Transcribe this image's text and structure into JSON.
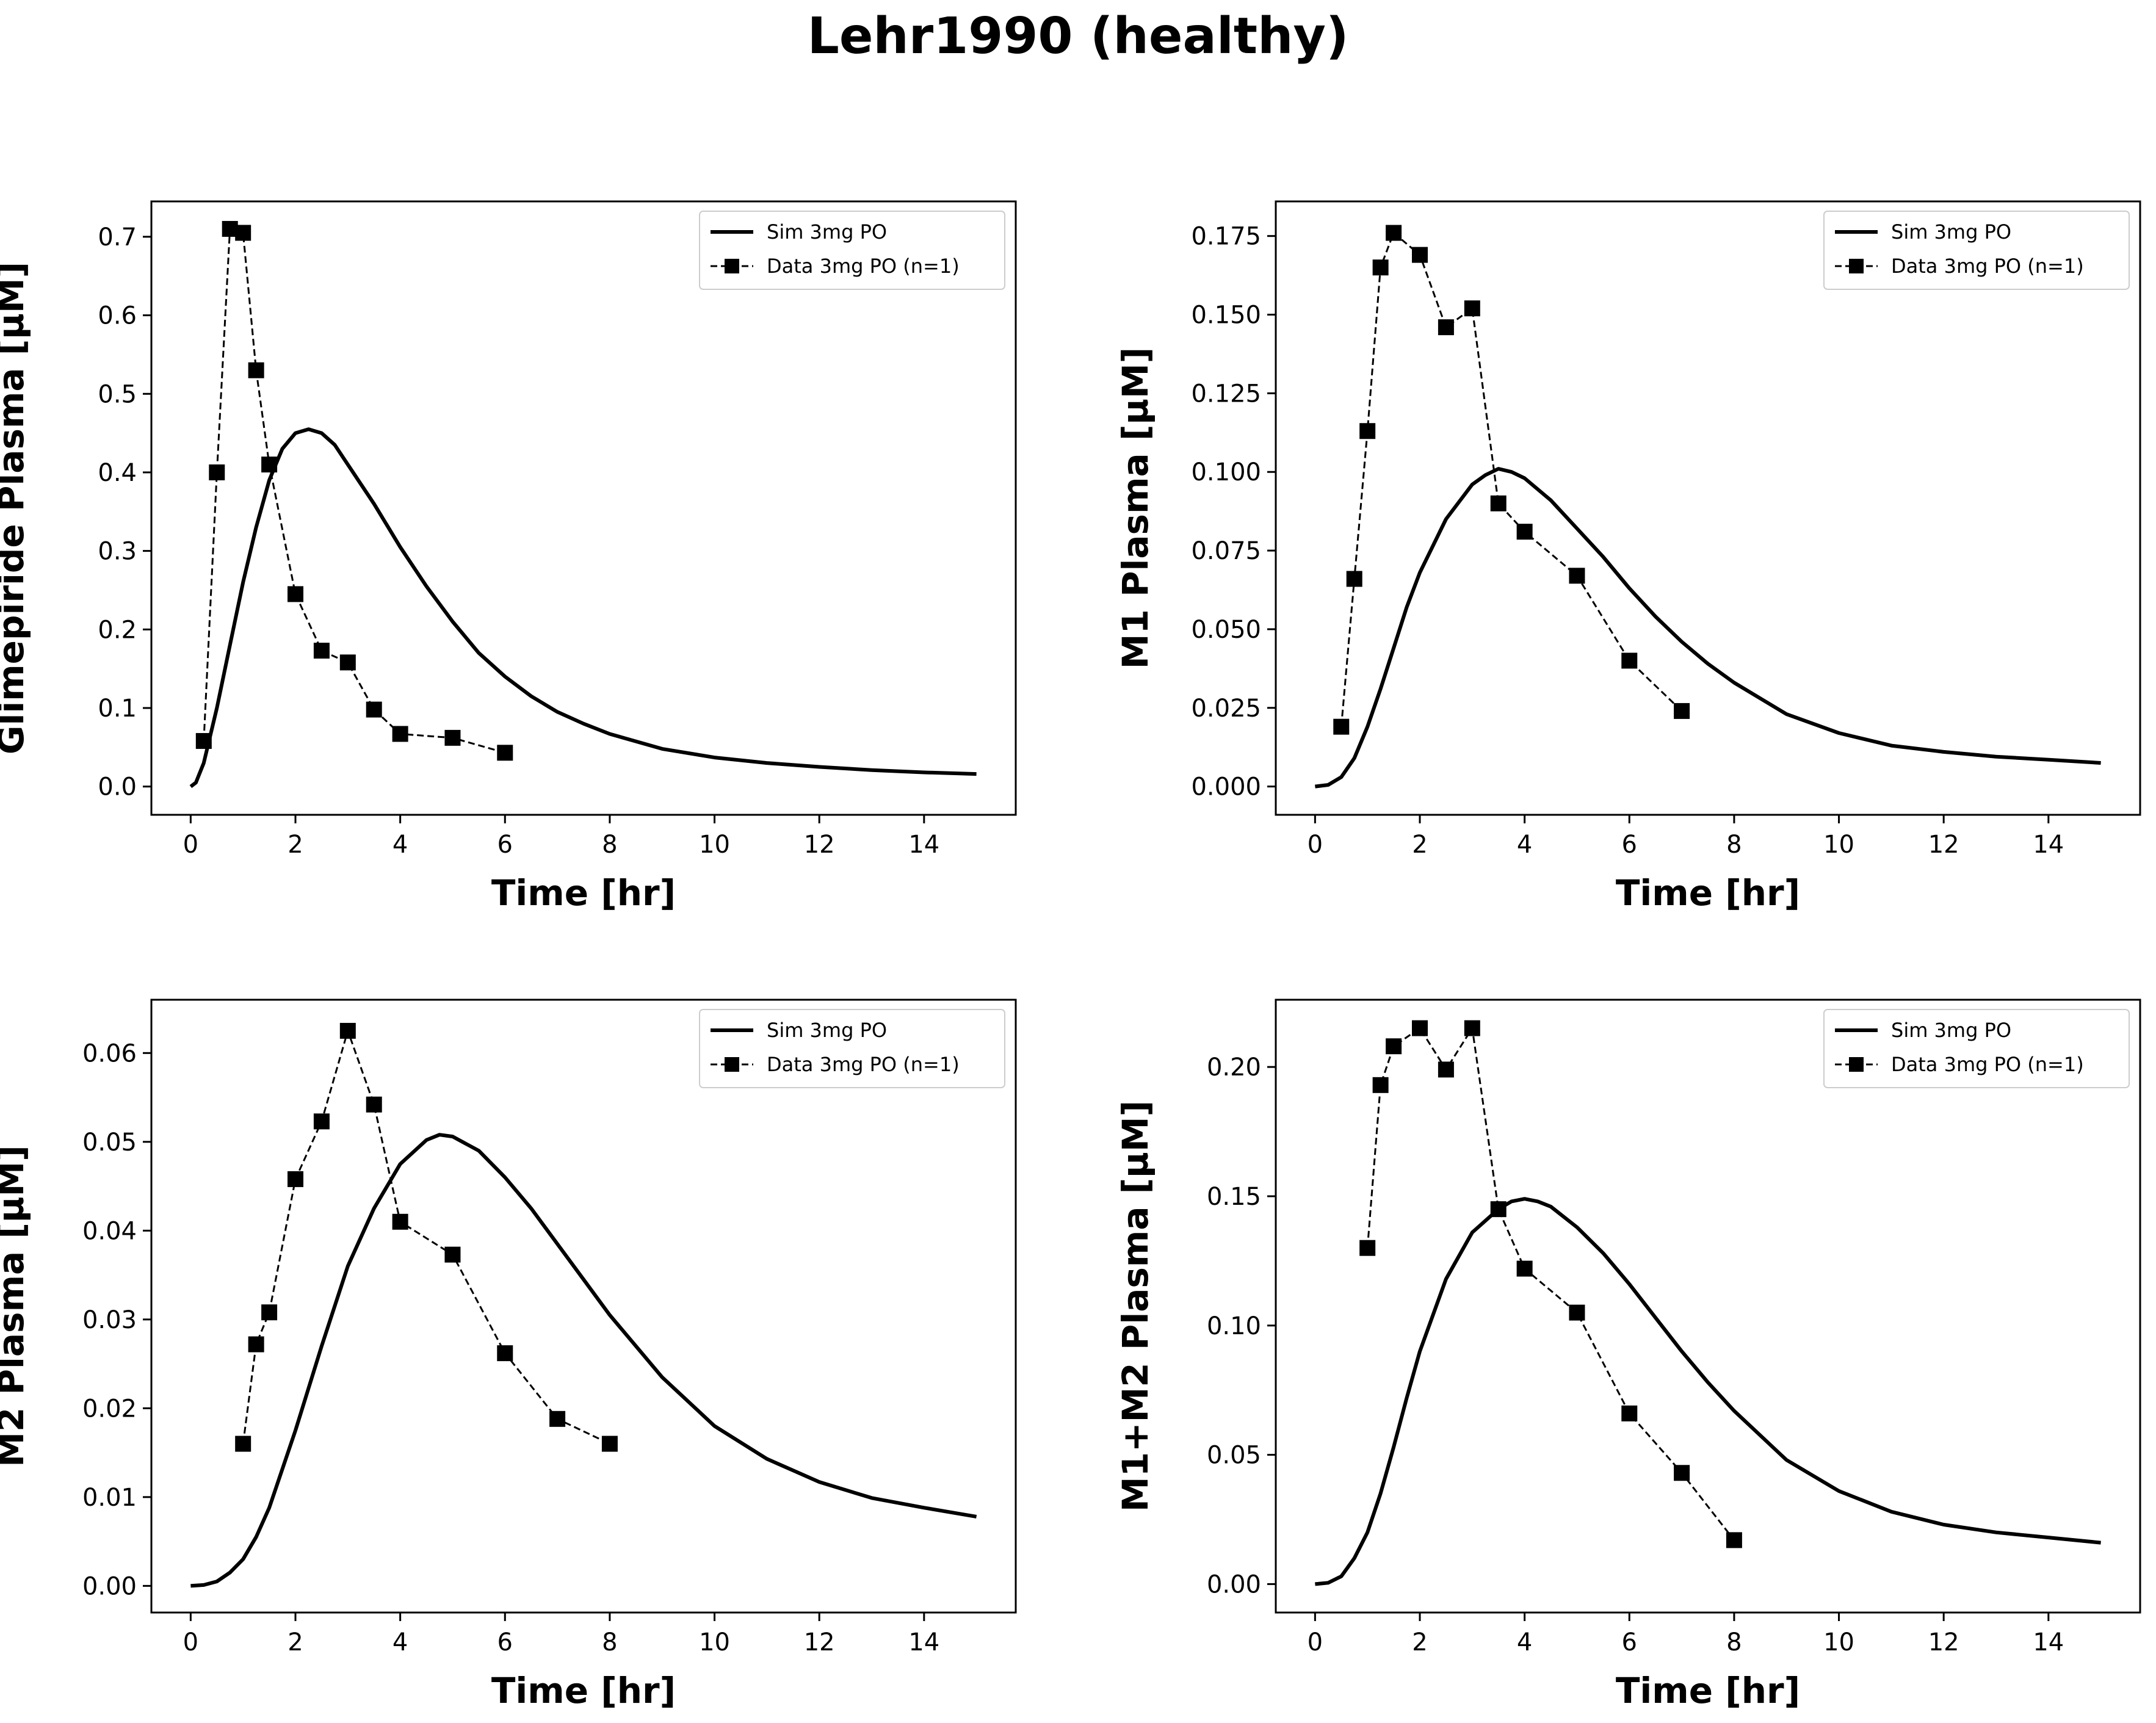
{
  "figure_title": "Lehr1990 (healthy)",
  "colors": {
    "sim": "#000000",
    "data": "#000000",
    "legend_border": "#cccccc"
  },
  "chart_data": [
    {
      "type": "line",
      "xlabel": "Time [hr]",
      "ylabel": "Glimepiride Plasma [µM]",
      "xlim": [
        -0.75,
        15.75
      ],
      "ylim": [
        -0.036,
        0.745
      ],
      "xticks": [
        0,
        2,
        4,
        6,
        8,
        10,
        12,
        14
      ],
      "yticks": [
        0.0,
        0.1,
        0.2,
        0.3,
        0.4,
        0.5,
        0.6,
        0.7
      ],
      "ytick_labels": [
        "0.0",
        "0.1",
        "0.2",
        "0.3",
        "0.4",
        "0.5",
        "0.6",
        "0.7"
      ],
      "legend_position": "upper right",
      "series": [
        {
          "name": "Sim 3mg PO",
          "style": "solid",
          "x": [
            0,
            0.1,
            0.25,
            0.5,
            0.75,
            1.0,
            1.25,
            1.5,
            1.75,
            2.0,
            2.25,
            2.5,
            2.75,
            3.0,
            3.5,
            4.0,
            4.5,
            5.0,
            5.5,
            6.0,
            6.5,
            7.0,
            7.5,
            8.0,
            9.0,
            10.0,
            11.0,
            12.0,
            13.0,
            14.0,
            15.0
          ],
          "y": [
            0.0,
            0.005,
            0.03,
            0.1,
            0.18,
            0.26,
            0.33,
            0.39,
            0.43,
            0.45,
            0.455,
            0.45,
            0.435,
            0.41,
            0.36,
            0.305,
            0.255,
            0.21,
            0.17,
            0.14,
            0.115,
            0.095,
            0.08,
            0.067,
            0.048,
            0.037,
            0.03,
            0.025,
            0.021,
            0.018,
            0.016
          ]
        },
        {
          "name": "Data 3mg PO (n=1)",
          "style": "dashed-square",
          "x": [
            0.25,
            0.5,
            0.75,
            1.0,
            1.25,
            1.5,
            2.0,
            2.5,
            3.0,
            3.5,
            4.0,
            5.0,
            6.0
          ],
          "y": [
            0.058,
            0.4,
            0.71,
            0.705,
            0.53,
            0.41,
            0.245,
            0.173,
            0.158,
            0.098,
            0.067,
            0.062,
            0.043
          ]
        }
      ]
    },
    {
      "type": "line",
      "xlabel": "Time [hr]",
      "ylabel": "M1 Plasma [µM]",
      "xlim": [
        -0.75,
        15.75
      ],
      "ylim": [
        -0.009,
        0.186
      ],
      "xticks": [
        0,
        2,
        4,
        6,
        8,
        10,
        12,
        14
      ],
      "yticks": [
        0.0,
        0.025,
        0.05,
        0.075,
        0.1,
        0.125,
        0.15,
        0.175
      ],
      "ytick_labels": [
        "0.000",
        "0.025",
        "0.050",
        "0.075",
        "0.100",
        "0.125",
        "0.150",
        "0.175"
      ],
      "legend_position": "upper right",
      "series": [
        {
          "name": "Sim 3mg PO",
          "style": "solid",
          "x": [
            0,
            0.25,
            0.5,
            0.75,
            1.0,
            1.25,
            1.5,
            1.75,
            2.0,
            2.5,
            3.0,
            3.25,
            3.5,
            3.75,
            4.0,
            4.5,
            5.0,
            5.5,
            6.0,
            6.5,
            7.0,
            7.5,
            8.0,
            9.0,
            10.0,
            11.0,
            12.0,
            13.0,
            14.0,
            15.0
          ],
          "y": [
            0.0,
            0.0005,
            0.003,
            0.009,
            0.019,
            0.031,
            0.044,
            0.057,
            0.068,
            0.085,
            0.096,
            0.099,
            0.101,
            0.1,
            0.098,
            0.091,
            0.082,
            0.073,
            0.063,
            0.054,
            0.046,
            0.039,
            0.033,
            0.023,
            0.017,
            0.013,
            0.011,
            0.0095,
            0.0085,
            0.0075
          ]
        },
        {
          "name": "Data 3mg PO (n=1)",
          "style": "dashed-square",
          "x": [
            0.5,
            0.75,
            1.0,
            1.25,
            1.5,
            2.0,
            2.5,
            3.0,
            3.5,
            4.0,
            5.0,
            6.0,
            7.0
          ],
          "y": [
            0.019,
            0.066,
            0.113,
            0.165,
            0.176,
            0.169,
            0.146,
            0.152,
            0.09,
            0.081,
            0.067,
            0.04,
            0.024
          ]
        }
      ]
    },
    {
      "type": "line",
      "xlabel": "Time [hr]",
      "ylabel": "M2 Plasma [µM]",
      "xlim": [
        -0.75,
        15.75
      ],
      "ylim": [
        -0.003,
        0.066
      ],
      "xticks": [
        0,
        2,
        4,
        6,
        8,
        10,
        12,
        14
      ],
      "yticks": [
        0.0,
        0.01,
        0.02,
        0.03,
        0.04,
        0.05,
        0.06
      ],
      "ytick_labels": [
        "0.00",
        "0.01",
        "0.02",
        "0.03",
        "0.04",
        "0.05",
        "0.06"
      ],
      "legend_position": "upper right",
      "series": [
        {
          "name": "Sim 3mg PO",
          "style": "solid",
          "x": [
            0,
            0.25,
            0.5,
            0.75,
            1.0,
            1.25,
            1.5,
            2.0,
            2.5,
            3.0,
            3.5,
            4.0,
            4.5,
            4.75,
            5.0,
            5.5,
            6.0,
            6.5,
            7.0,
            7.5,
            8.0,
            9.0,
            10.0,
            11.0,
            12.0,
            13.0,
            14.0,
            15.0
          ],
          "y": [
            0.0,
            0.0001,
            0.0005,
            0.0015,
            0.003,
            0.0055,
            0.0088,
            0.0175,
            0.027,
            0.036,
            0.0425,
            0.0475,
            0.0502,
            0.0508,
            0.0506,
            0.049,
            0.046,
            0.0425,
            0.0385,
            0.0345,
            0.0305,
            0.0235,
            0.018,
            0.0143,
            0.0117,
            0.0099,
            0.0088,
            0.0078
          ]
        },
        {
          "name": "Data 3mg PO (n=1)",
          "style": "dashed-square",
          "x": [
            1.0,
            1.25,
            1.5,
            2.0,
            2.5,
            3.0,
            3.5,
            4.0,
            5.0,
            6.0,
            7.0,
            8.0
          ],
          "y": [
            0.016,
            0.0272,
            0.0308,
            0.0458,
            0.0523,
            0.0625,
            0.0542,
            0.041,
            0.0373,
            0.0262,
            0.0188,
            0.016
          ]
        }
      ]
    },
    {
      "type": "line",
      "xlabel": "Time [hr]",
      "ylabel": "M1+M2 Plasma [µM]",
      "xlim": [
        -0.75,
        15.75
      ],
      "ylim": [
        -0.011,
        0.226
      ],
      "xticks": [
        0,
        2,
        4,
        6,
        8,
        10,
        12,
        14
      ],
      "yticks": [
        0.0,
        0.05,
        0.1,
        0.15,
        0.2
      ],
      "ytick_labels": [
        "0.00",
        "0.05",
        "0.10",
        "0.15",
        "0.20"
      ],
      "legend_position": "upper right",
      "series": [
        {
          "name": "Sim 3mg PO",
          "style": "solid",
          "x": [
            0,
            0.25,
            0.5,
            0.75,
            1.0,
            1.25,
            1.5,
            1.75,
            2.0,
            2.5,
            3.0,
            3.5,
            3.75,
            4.0,
            4.25,
            4.5,
            5.0,
            5.5,
            6.0,
            6.5,
            7.0,
            7.5,
            8.0,
            9.0,
            10.0,
            11.0,
            12.0,
            13.0,
            14.0,
            15.0
          ],
          "y": [
            0.0,
            0.0005,
            0.003,
            0.01,
            0.02,
            0.035,
            0.053,
            0.072,
            0.09,
            0.118,
            0.136,
            0.145,
            0.148,
            0.149,
            0.148,
            0.146,
            0.138,
            0.128,
            0.116,
            0.103,
            0.09,
            0.078,
            0.067,
            0.048,
            0.036,
            0.028,
            0.023,
            0.02,
            0.018,
            0.016
          ]
        },
        {
          "name": "Data 3mg PO (n=1)",
          "style": "dashed-square",
          "x": [
            1.0,
            1.25,
            1.5,
            2.0,
            2.5,
            3.0,
            3.5,
            4.0,
            5.0,
            6.0,
            7.0,
            8.0
          ],
          "y": [
            0.13,
            0.193,
            0.208,
            0.215,
            0.199,
            0.215,
            0.145,
            0.122,
            0.105,
            0.066,
            0.043,
            0.017
          ]
        }
      ]
    }
  ]
}
